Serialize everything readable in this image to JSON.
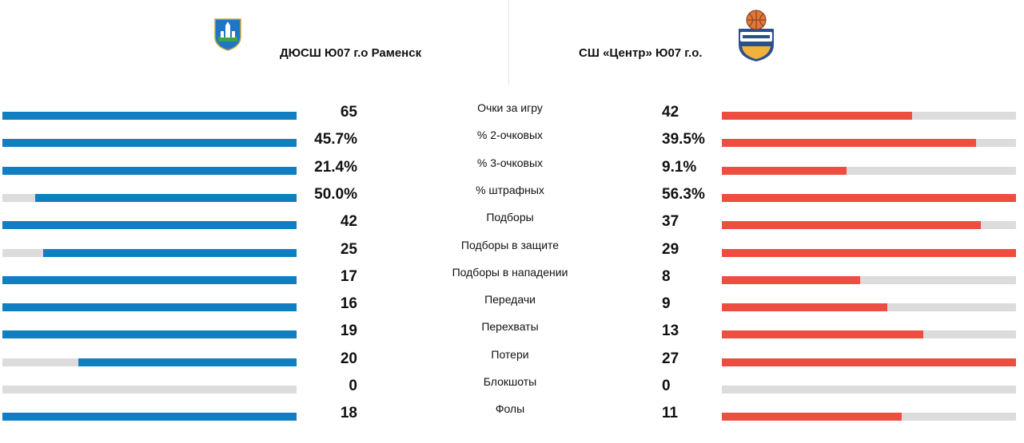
{
  "colors": {
    "home": "#0f7fc1",
    "away": "#ee4e3f",
    "track": "#dcdcdc"
  },
  "home_team": {
    "name": "ДЮСШ Ю07 г.о Раменск",
    "logo": "ramenskoye-coat-of-arms-icon"
  },
  "away_team": {
    "name": "СШ «Центр» Ю07 г.о.",
    "logo": "basketball-club-emblem-icon"
  },
  "stats": [
    {
      "label": "Очки за игру",
      "home": "65",
      "away": "42",
      "home_fill": 1.0,
      "away_fill": 0.646
    },
    {
      "label": "% 2-очковых",
      "home": "45.7%",
      "away": "39.5%",
      "home_fill": 1.0,
      "away_fill": 0.864
    },
    {
      "label": "% 3-очковых",
      "home": "21.4%",
      "away": "9.1%",
      "home_fill": 1.0,
      "away_fill": 0.425
    },
    {
      "label": "% штрафных",
      "home": "50.0%",
      "away": "56.3%",
      "home_fill": 0.888,
      "away_fill": 1.0
    },
    {
      "label": "Подборы",
      "home": "42",
      "away": "37",
      "home_fill": 1.0,
      "away_fill": 0.881
    },
    {
      "label": "Подборы в защите",
      "home": "25",
      "away": "29",
      "home_fill": 0.862,
      "away_fill": 1.0
    },
    {
      "label": "Подборы в нападении",
      "home": "17",
      "away": "8",
      "home_fill": 1.0,
      "away_fill": 0.471
    },
    {
      "label": "Передачи",
      "home": "16",
      "away": "9",
      "home_fill": 1.0,
      "away_fill": 0.5625
    },
    {
      "label": "Перехваты",
      "home": "19",
      "away": "13",
      "home_fill": 1.0,
      "away_fill": 0.684
    },
    {
      "label": "Потери",
      "home": "20",
      "away": "27",
      "home_fill": 0.741,
      "away_fill": 1.0
    },
    {
      "label": "Блокшоты",
      "home": "0",
      "away": "0",
      "home_fill": 0,
      "away_fill": 0
    },
    {
      "label": "Фолы",
      "home": "18",
      "away": "11",
      "home_fill": 1.0,
      "away_fill": 0.611
    }
  ]
}
